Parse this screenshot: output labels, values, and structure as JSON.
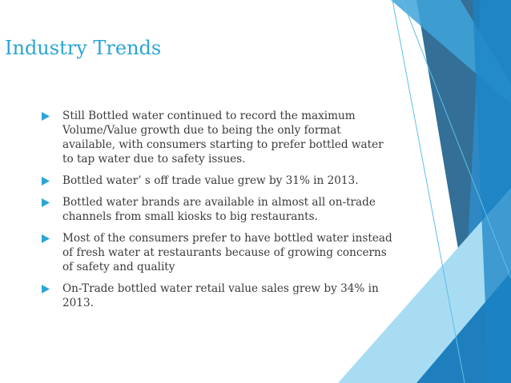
{
  "slide": {
    "title": "Industry Trends",
    "bullets": [
      "Still Bottled water continued to record the maximum Volume/Value growth due to being the only format available, with consumers starting to prefer bottled water to tap water due to safety issues.",
      "Bottled water’ s off trade value grew by 31% in 2013.",
      "Bottled water brands are available in almost all on-trade channels from small kiosks to big restaurants.",
      "Most of the consumers prefer to have bottled water instead of fresh water at restaurants because of growing concerns of safety and quality",
      "On-Trade bottled water retail value sales grew by 34% in 2013."
    ]
  },
  "theme": {
    "title_color": "#2aa5d6",
    "accent_dark": "#2f6f9a",
    "accent_mid": "#1f8fd0",
    "accent_light": "#9fd9f3",
    "bullet_icon": "right-triangle-icon"
  }
}
